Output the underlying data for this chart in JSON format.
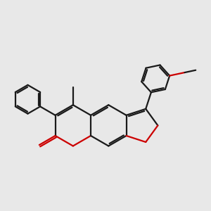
{
  "bg_color": "#e8e8e8",
  "bond_color": "#1a1a1a",
  "oxygen_color": "#cc0000",
  "bond_width": 1.6,
  "figsize": [
    3.0,
    3.0
  ],
  "dpi": 100
}
